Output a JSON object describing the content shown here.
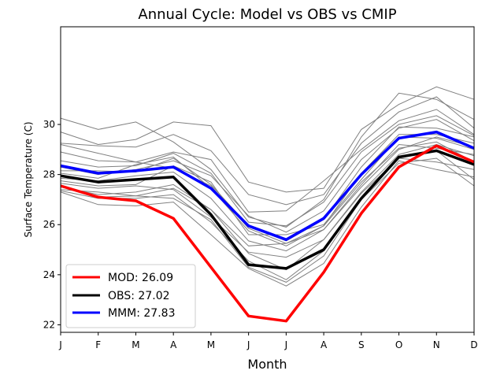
{
  "chart_data": {
    "type": "line",
    "title": "Annual Cycle: Model vs OBS vs CMIP",
    "xlabel": "Month",
    "ylabel": "Surface Temperature (C)",
    "categories": [
      "J",
      "F",
      "M",
      "A",
      "M",
      "J",
      "J",
      "A",
      "S",
      "O",
      "N",
      "D"
    ],
    "ylim": [
      21.7,
      33.9
    ],
    "yticks": [
      22,
      24,
      26,
      28,
      30
    ],
    "legend_position": "lower-left",
    "series": [
      {
        "name": "MOD",
        "label": "MOD: 26.09",
        "color": "#ff0000",
        "values": [
          27.55,
          27.1,
          26.95,
          26.25,
          24.3,
          22.35,
          22.15,
          24.1,
          26.45,
          28.3,
          29.15,
          28.5
        ]
      },
      {
        "name": "OBS",
        "label": "OBS: 27.02",
        "color": "#000000",
        "values": [
          27.95,
          27.7,
          27.8,
          27.9,
          26.4,
          24.4,
          24.25,
          25.0,
          27.05,
          28.7,
          28.95,
          28.4
        ]
      },
      {
        "name": "MMM",
        "label": "MMM: 27.83",
        "color": "#0000ff",
        "values": [
          28.35,
          28.05,
          28.15,
          28.3,
          27.45,
          25.95,
          25.4,
          26.25,
          28.0,
          29.45,
          29.7,
          29.05
        ]
      }
    ],
    "cmip_color": "#808080",
    "cmip_members": [
      [
        30.25,
        29.8,
        30.1,
        29.3,
        28.2,
        26.3,
        25.9,
        27.0,
        29.5,
        31.25,
        31.0,
        30.2
      ],
      [
        29.7,
        29.2,
        29.4,
        30.1,
        29.95,
        27.7,
        27.3,
        27.45,
        29.8,
        30.8,
        31.5,
        31.0
      ],
      [
        29.25,
        29.15,
        29.1,
        29.6,
        28.95,
        27.2,
        26.8,
        27.2,
        29.25,
        30.5,
        31.1,
        29.85
      ],
      [
        28.9,
        28.55,
        28.5,
        28.9,
        28.6,
        26.5,
        26.55,
        27.75,
        29.0,
        30.15,
        30.6,
        29.6
      ],
      [
        28.55,
        28.3,
        28.35,
        28.85,
        28.05,
        26.1,
        25.95,
        26.9,
        28.9,
        30.0,
        30.35,
        29.55
      ],
      [
        28.3,
        28.0,
        28.2,
        28.55,
        27.95,
        26.35,
        25.7,
        26.55,
        28.6,
        29.85,
        30.2,
        29.35
      ],
      [
        28.15,
        28.15,
        28.1,
        28.65,
        27.6,
        25.95,
        25.35,
        26.2,
        28.3,
        29.9,
        29.85,
        29.5
      ],
      [
        28.05,
        27.85,
        28.4,
        28.7,
        27.45,
        25.75,
        25.15,
        25.95,
        28.05,
        29.6,
        29.6,
        29.25
      ],
      [
        27.75,
        27.55,
        27.6,
        28.35,
        27.7,
        25.6,
        25.6,
        26.0,
        27.8,
        29.5,
        29.45,
        29.0
      ],
      [
        27.5,
        27.2,
        27.3,
        27.6,
        26.6,
        25.15,
        25.25,
        25.8,
        27.5,
        29.0,
        29.5,
        29.1
      ],
      [
        27.55,
        27.1,
        27.15,
        27.45,
        26.6,
        24.85,
        24.2,
        25.4,
        27.3,
        28.8,
        29.2,
        28.75
      ],
      [
        27.35,
        27.05,
        27.05,
        27.2,
        26.1,
        24.55,
        23.8,
        24.95,
        27.0,
        28.65,
        28.5,
        28.2
      ],
      [
        27.3,
        26.8,
        26.75,
        26.9,
        25.6,
        24.25,
        23.55,
        24.45,
        26.7,
        28.55,
        28.2,
        27.9
      ],
      [
        27.4,
        27.3,
        27.15,
        27.05,
        26.2,
        24.3,
        23.7,
        24.75,
        27.0,
        28.45,
        28.65,
        27.55
      ],
      [
        27.65,
        27.45,
        27.55,
        27.4,
        26.3,
        24.9,
        24.7,
        25.4,
        27.25,
        28.65,
        28.95,
        27.8
      ],
      [
        29.2,
        28.85,
        28.5,
        28.25,
        27.55,
        25.85,
        25.25,
        25.95,
        27.7,
        29.05,
        29.3,
        28.5
      ],
      [
        27.85,
        27.75,
        27.95,
        28.1,
        27.05,
        25.35,
        24.95,
        25.8,
        27.6,
        29.2,
        29.05,
        28.8
      ]
    ]
  }
}
